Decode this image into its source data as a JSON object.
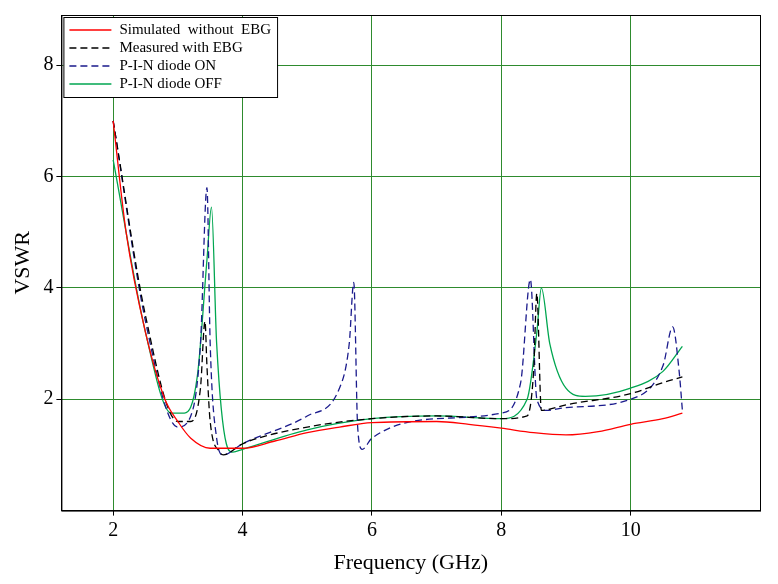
{
  "chart_data": {
    "type": "line",
    "x_label": "Frequency (GHz)",
    "y_label": "VSWR",
    "xlim": [
      1.2,
      12
    ],
    "ylim": [
      0,
      8.9
    ],
    "xticks": [
      2,
      4,
      6,
      8,
      10
    ],
    "yticks": [
      2,
      4,
      6,
      8
    ],
    "grid": true,
    "legend": "upper left",
    "series": [
      {
        "name": "Simulated  without  EBG",
        "color": "#ff0000",
        "line_style": "solid",
        "x": [
          2,
          2.2,
          2.5,
          2.8,
          3.0,
          3.2,
          3.5,
          4,
          4.5,
          5,
          5.5,
          6,
          7,
          7.5,
          8,
          8.5,
          9,
          9.5,
          10,
          10.5,
          10.8
        ],
        "values": [
          7.0,
          5.0,
          3.2,
          2.0,
          1.6,
          1.3,
          1.12,
          1.12,
          1.25,
          1.4,
          1.5,
          1.58,
          1.6,
          1.55,
          1.48,
          1.4,
          1.36,
          1.42,
          1.55,
          1.65,
          1.75
        ]
      },
      {
        "name": "Measured with EBG",
        "color": "#000000",
        "line_style": "dashed",
        "x": [
          2,
          2.5,
          3.0,
          3.2,
          3.35,
          3.42,
          3.45,
          3.5,
          3.65,
          3.7,
          4,
          5,
          6,
          7,
          8,
          8.4,
          8.5,
          8.55,
          8.62,
          9,
          10,
          10.5,
          10.8
        ],
        "values": [
          7.0,
          3.5,
          1.6,
          1.6,
          2.2,
          3.4,
          2.6,
          1.6,
          1.05,
          1.0,
          1.2,
          1.5,
          1.65,
          1.7,
          1.65,
          1.7,
          2.5,
          3.9,
          1.8,
          1.9,
          2.1,
          2.3,
          2.4
        ]
      },
      {
        "name": "P-I-N diode ON",
        "color": "#1a1a8c",
        "line_style": "dashed",
        "x": [
          2,
          2.5,
          3.0,
          3.2,
          3.35,
          3.45,
          3.5,
          3.6,
          3.7,
          4,
          5,
          5.5,
          5.65,
          5.72,
          5.78,
          5.85,
          6,
          7,
          8,
          8.3,
          8.45,
          8.55,
          8.7,
          9,
          10,
          10.5,
          10.65,
          10.75,
          10.8
        ],
        "values": [
          7.0,
          3.4,
          1.5,
          1.7,
          3.0,
          5.8,
          3.0,
          1.3,
          1.0,
          1.2,
          1.7,
          2.2,
          3.0,
          4.1,
          1.5,
          1.1,
          1.3,
          1.65,
          1.75,
          2.3,
          4.15,
          2.0,
          1.8,
          1.85,
          2.0,
          2.6,
          3.3,
          2.5,
          1.8
        ]
      },
      {
        "name": "P-I-N diode OFF",
        "color": "#00a650",
        "line_style": "solid",
        "x": [
          2,
          2.5,
          2.9,
          3.1,
          3.3,
          3.45,
          3.52,
          3.6,
          3.75,
          3.85,
          4,
          5,
          6,
          7,
          8,
          8.4,
          8.55,
          8.62,
          8.75,
          9,
          9.3,
          10,
          10.5,
          10.8
        ],
        "values": [
          6.3,
          3.2,
          1.75,
          1.75,
          2.4,
          4.5,
          5.45,
          3.0,
          1.2,
          1.05,
          1.1,
          1.45,
          1.65,
          1.7,
          1.65,
          2.0,
          3.2,
          4.0,
          3.0,
          2.2,
          2.05,
          2.2,
          2.5,
          2.95
        ]
      }
    ]
  }
}
